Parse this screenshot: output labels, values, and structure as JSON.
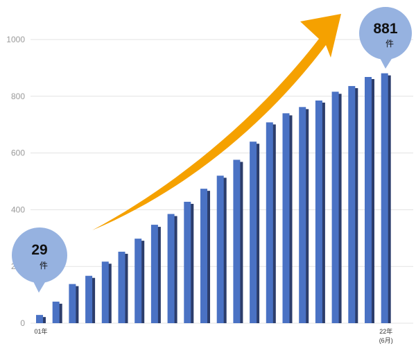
{
  "chart_data": {
    "type": "bar",
    "title": "",
    "xlabel": "",
    "ylabel": "",
    "ylim": [
      0,
      1000
    ],
    "yticks": [
      0,
      200,
      400,
      600,
      800,
      1000
    ],
    "grid": true,
    "categories": [
      "01年",
      "",
      "",
      "",
      "",
      "",
      "",
      "",
      "",
      "",
      "",
      "",
      "",
      "",
      "",
      "",
      "",
      "",
      "",
      "",
      "",
      "22年\n(6月)"
    ],
    "x_labels": [
      {
        "index": 0,
        "lines": [
          "01年"
        ]
      },
      {
        "index": 21,
        "lines": [
          "22年",
          "(6月)"
        ]
      }
    ],
    "values": [
      29,
      76,
      138,
      167,
      217,
      252,
      298,
      347,
      385,
      428,
      474,
      520,
      576,
      640,
      708,
      740,
      762,
      785,
      816,
      836,
      868,
      881
    ],
    "annotations": [
      {
        "index": 0,
        "number": "29",
        "unit": "件"
      },
      {
        "index": 21,
        "number": "881",
        "unit": "件"
      }
    ],
    "growth_arrow": true
  },
  "colors": {
    "bar_front": "#4a72c4",
    "bar_shadow": "#2c3d6b",
    "grid": "#e3e3e3",
    "bubble": "#96b2e0",
    "arrow": "#f5a100"
  }
}
